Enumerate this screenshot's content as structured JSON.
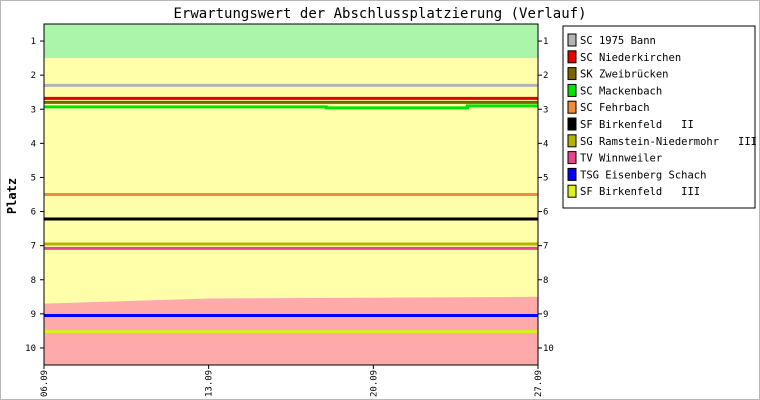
{
  "chart_data": {
    "type": "line",
    "title": "Erwartungswert der Abschlussplatzierung (Verlauf)",
    "ylabel": "Platz",
    "xlabel": "",
    "ylim": [
      0.5,
      10.5
    ],
    "y_inverted": true,
    "y_ticks": [
      1,
      2,
      3,
      4,
      5,
      6,
      7,
      8,
      9,
      10
    ],
    "x_range": [
      "2009-09-06",
      "2009-09-27"
    ],
    "x_ticks": [
      {
        "date": "2009-09-06",
        "label": "06.09"
      },
      {
        "date": "2009-09-13",
        "label": "13.09"
      },
      {
        "date": "2009-09-20",
        "label": "20.09"
      },
      {
        "date": "2009-09-27",
        "label": "27.09"
      }
    ],
    "bands": [
      {
        "zone": "promotion",
        "color": "#aaf5aa",
        "points": [
          {
            "date": "2009-09-06",
            "from": 0.5,
            "to": 1.5
          },
          {
            "date": "2009-09-27",
            "from": 0.5,
            "to": 1.5
          }
        ]
      },
      {
        "zone": "middle",
        "color": "#ffffaa",
        "points": [
          {
            "date": "2009-09-06",
            "from": 1.5,
            "to": 8.7
          },
          {
            "date": "2009-09-13",
            "from": 1.5,
            "to": 8.55
          },
          {
            "date": "2009-09-27",
            "from": 1.5,
            "to": 8.5
          }
        ]
      },
      {
        "zone": "relegation",
        "color": "#ffaaaa",
        "points": [
          {
            "date": "2009-09-06",
            "from": 8.7,
            "to": 10.5
          },
          {
            "date": "2009-09-13",
            "from": 8.55,
            "to": 10.5
          },
          {
            "date": "2009-09-27",
            "from": 8.5,
            "to": 10.5
          }
        ]
      }
    ],
    "legend_position": "right",
    "series": [
      {
        "name": "SC 1975 Bann",
        "color": "#b4b4b4",
        "points": [
          {
            "date": "2009-09-06",
            "y": 2.3
          },
          {
            "date": "2009-09-27",
            "y": 2.3
          }
        ]
      },
      {
        "name": "SC Niederkirchen",
        "color": "#e60000",
        "points": [
          {
            "date": "2009-09-06",
            "y": 2.68
          },
          {
            "date": "2009-09-27",
            "y": 2.68
          }
        ]
      },
      {
        "name": "SK Zweibrücken",
        "color": "#786400",
        "points": [
          {
            "date": "2009-09-06",
            "y": 2.8
          },
          {
            "date": "2009-09-27",
            "y": 2.8
          }
        ]
      },
      {
        "name": "SC Mackenbach",
        "color": "#00e600",
        "points": [
          {
            "date": "2009-09-06",
            "y": 2.93
          },
          {
            "date": "2009-09-18",
            "y": 2.93
          },
          {
            "date": "2009-09-18",
            "y": 2.96
          },
          {
            "date": "2009-09-24",
            "y": 2.96
          },
          {
            "date": "2009-09-24",
            "y": 2.9
          },
          {
            "date": "2009-09-27",
            "y": 2.9
          }
        ]
      },
      {
        "name": "SC Fehrbach",
        "color": "#f08c3c",
        "points": [
          {
            "date": "2009-09-06",
            "y": 5.5
          },
          {
            "date": "2009-09-27",
            "y": 5.5
          }
        ]
      },
      {
        "name": "SF Birkenfeld   II",
        "color": "#000000",
        "points": [
          {
            "date": "2009-09-06",
            "y": 6.22
          },
          {
            "date": "2009-09-27",
            "y": 6.22
          }
        ]
      },
      {
        "name": "SG Ramstein-Niedermohr   III",
        "color": "#b4b400",
        "points": [
          {
            "date": "2009-09-06",
            "y": 6.95
          },
          {
            "date": "2009-09-27",
            "y": 6.95
          }
        ]
      },
      {
        "name": "TV Winnweiler",
        "color": "#e6468c",
        "points": [
          {
            "date": "2009-09-06",
            "y": 7.08
          },
          {
            "date": "2009-09-27",
            "y": 7.08
          }
        ]
      },
      {
        "name": "TSG Eisenberg Schach",
        "color": "#0000ff",
        "points": [
          {
            "date": "2009-09-06",
            "y": 9.05
          },
          {
            "date": "2009-09-27",
            "y": 9.05
          }
        ]
      },
      {
        "name": "SF Birkenfeld   III",
        "color": "#dcf01e",
        "points": [
          {
            "date": "2009-09-06",
            "y": 9.52
          },
          {
            "date": "2009-09-27",
            "y": 9.52
          }
        ]
      }
    ]
  }
}
